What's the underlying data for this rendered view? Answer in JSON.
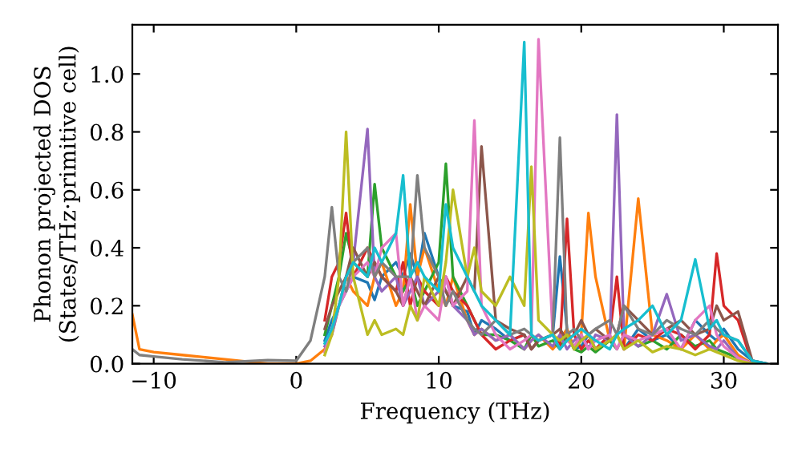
{
  "chart_data": {
    "type": "line",
    "xlabel": "Frequency (THz)",
    "ylabel": "Phonon projected DOS\n(States/THz·primitive cell)",
    "x": [
      -11.5,
      -11,
      -10,
      -8,
      -5,
      -2,
      0,
      1,
      2,
      2.5,
      3,
      3.5,
      4,
      5,
      5.5,
      6,
      7,
      7.5,
      8,
      8.5,
      9,
      10,
      10.5,
      11,
      12,
      12.5,
      13,
      14,
      15,
      16,
      16.5,
      17,
      18,
      18.5,
      19,
      19.5,
      20,
      20.5,
      21,
      22,
      22.5,
      23,
      24,
      25,
      26,
      27,
      28,
      29,
      29.5,
      30,
      31,
      32,
      33
    ],
    "xlim": [
      -11.5,
      33.8
    ],
    "xticks": [
      {
        "value": -10,
        "label": "−10"
      },
      0,
      10,
      20,
      30
    ],
    "ylim": [
      0,
      1.17
    ],
    "yticks": [
      {
        "value": 0,
        "label": "0.0"
      },
      {
        "value": 0.2,
        "label": "0.2"
      },
      {
        "value": 0.4,
        "label": "0.4"
      },
      {
        "value": 0.6,
        "label": "0.6"
      },
      {
        "value": 0.8,
        "label": "0.8"
      },
      {
        "value": 1.0,
        "label": "1.0"
      }
    ],
    "grid": false,
    "legend": false,
    "line_style": "solid",
    "series": [
      {
        "color": "#1f77b4",
        "values": [
          null,
          null,
          null,
          null,
          null,
          null,
          null,
          null,
          0.08,
          0.15,
          0.2,
          0.25,
          0.3,
          0.28,
          0.22,
          0.3,
          0.35,
          0.3,
          0.38,
          0.3,
          0.45,
          0.3,
          0.25,
          0.2,
          0.18,
          0.1,
          0.15,
          0.12,
          0.08,
          0.1,
          0.05,
          0.08,
          0.1,
          0.37,
          0.12,
          0.05,
          0.06,
          0.1,
          0.05,
          0.08,
          0.1,
          0.05,
          0.12,
          0.08,
          0.1,
          0.05,
          0.15,
          0.1,
          0.08,
          0.12,
          0.05,
          0.01,
          0.0
        ]
      },
      {
        "color": "#ff7f0e",
        "values": [
          0.17,
          0.05,
          0.04,
          0.03,
          0.015,
          0.0,
          0.0,
          0.01,
          0.05,
          0.1,
          0.2,
          0.3,
          0.25,
          0.2,
          0.3,
          0.35,
          0.2,
          0.25,
          0.55,
          0.3,
          0.4,
          0.25,
          0.2,
          0.3,
          0.15,
          0.1,
          0.12,
          0.08,
          0.1,
          0.05,
          0.08,
          0.1,
          0.05,
          0.08,
          0.12,
          0.05,
          0.1,
          0.52,
          0.3,
          0.08,
          0.1,
          0.05,
          0.57,
          0.1,
          0.08,
          0.05,
          0.1,
          0.05,
          0.08,
          0.1,
          0.03,
          0.0,
          0.0
        ]
      },
      {
        "color": "#2ca02c",
        "values": [
          null,
          null,
          null,
          null,
          null,
          null,
          null,
          null,
          0.1,
          0.2,
          0.3,
          0.45,
          0.35,
          0.3,
          0.62,
          0.4,
          0.3,
          0.25,
          0.3,
          0.2,
          0.25,
          0.35,
          0.69,
          0.3,
          0.2,
          0.15,
          0.1,
          0.1,
          0.08,
          0.05,
          0.1,
          0.06,
          0.08,
          0.05,
          0.1,
          0.05,
          0.04,
          0.06,
          0.04,
          0.08,
          0.05,
          0.1,
          0.06,
          0.08,
          0.05,
          0.1,
          0.06,
          0.08,
          0.05,
          0.04,
          0.02,
          0.0,
          0.0
        ]
      },
      {
        "color": "#d62728",
        "values": [
          null,
          null,
          null,
          null,
          null,
          null,
          null,
          null,
          0.15,
          0.3,
          0.35,
          0.52,
          0.3,
          0.4,
          0.35,
          0.3,
          0.25,
          0.35,
          0.2,
          0.3,
          0.25,
          0.2,
          0.3,
          0.25,
          0.2,
          0.15,
          0.1,
          0.05,
          0.08,
          0.1,
          0.05,
          0.08,
          0.1,
          0.06,
          0.5,
          0.1,
          0.05,
          0.08,
          0.05,
          0.1,
          0.3,
          0.05,
          0.1,
          0.08,
          0.12,
          0.1,
          0.05,
          0.1,
          0.38,
          0.2,
          0.15,
          0.0,
          0.0
        ]
      },
      {
        "color": "#9467bd",
        "values": [
          null,
          null,
          null,
          null,
          null,
          null,
          null,
          null,
          0.06,
          0.1,
          0.2,
          0.3,
          0.35,
          0.81,
          0.3,
          0.25,
          0.3,
          0.2,
          0.25,
          0.3,
          0.2,
          0.25,
          0.3,
          0.2,
          0.15,
          0.1,
          0.12,
          0.08,
          0.1,
          0.05,
          0.08,
          0.1,
          0.06,
          0.1,
          0.05,
          0.08,
          0.1,
          0.05,
          0.1,
          0.08,
          0.86,
          0.1,
          0.06,
          0.1,
          0.24,
          0.08,
          0.1,
          0.06,
          0.05,
          0.08,
          0.02,
          0.0,
          0.0
        ]
      },
      {
        "color": "#8c564b",
        "values": [
          null,
          null,
          null,
          null,
          null,
          null,
          null,
          null,
          0.12,
          0.2,
          0.25,
          0.3,
          0.4,
          0.3,
          0.35,
          0.3,
          0.25,
          0.2,
          0.3,
          0.25,
          0.2,
          0.3,
          0.25,
          0.2,
          0.3,
          0.25,
          0.75,
          0.15,
          0.12,
          0.1,
          0.05,
          0.08,
          0.1,
          0.12,
          0.08,
          0.1,
          0.15,
          0.1,
          0.12,
          0.08,
          0.1,
          0.2,
          0.15,
          0.1,
          0.12,
          0.15,
          0.1,
          0.12,
          0.2,
          0.15,
          0.18,
          0.01,
          0.0
        ]
      },
      {
        "color": "#e377c2",
        "values": [
          null,
          null,
          null,
          null,
          null,
          null,
          null,
          null,
          0.04,
          0.12,
          0.2,
          0.25,
          0.3,
          0.35,
          0.3,
          0.4,
          0.45,
          0.2,
          0.3,
          0.15,
          0.2,
          0.15,
          0.3,
          0.2,
          0.25,
          0.84,
          0.2,
          0.1,
          0.05,
          0.08,
          0.1,
          1.12,
          0.1,
          0.05,
          0.08,
          0.06,
          0.1,
          0.05,
          0.08,
          0.1,
          0.05,
          0.1,
          0.08,
          0.1,
          0.12,
          0.05,
          0.15,
          0.2,
          0.1,
          0.06,
          0.02,
          0.0,
          0.0
        ]
      },
      {
        "color": "#7f7f7f",
        "values": [
          0.05,
          0.03,
          0.025,
          0.015,
          0.005,
          0.012,
          0.01,
          0.08,
          0.3,
          0.54,
          0.3,
          0.25,
          0.35,
          0.4,
          0.3,
          0.35,
          0.3,
          0.3,
          0.3,
          0.65,
          0.4,
          0.3,
          0.2,
          0.25,
          0.15,
          0.12,
          0.1,
          0.15,
          0.1,
          0.12,
          0.1,
          0.08,
          0.1,
          0.78,
          0.1,
          0.12,
          0.08,
          0.1,
          0.12,
          0.15,
          0.1,
          0.2,
          0.12,
          0.1,
          0.15,
          0.12,
          0.1,
          0.15,
          0.12,
          0.1,
          0.08,
          0.01,
          0.0
        ]
      },
      {
        "color": "#bcbd22",
        "values": [
          null,
          null,
          null,
          null,
          null,
          null,
          null,
          null,
          0.03,
          0.1,
          0.3,
          0.8,
          0.3,
          0.1,
          0.15,
          0.1,
          0.12,
          0.1,
          0.2,
          0.15,
          0.3,
          0.2,
          0.35,
          0.6,
          0.3,
          0.4,
          0.25,
          0.2,
          0.3,
          0.2,
          0.68,
          0.15,
          0.1,
          0.08,
          0.1,
          0.05,
          0.08,
          0.1,
          0.05,
          0.08,
          0.1,
          0.05,
          0.08,
          0.04,
          0.06,
          0.05,
          0.03,
          0.05,
          0.04,
          0.03,
          0.01,
          0.0,
          0.0
        ]
      },
      {
        "color": "#17becf",
        "values": [
          null,
          null,
          null,
          null,
          null,
          null,
          null,
          null,
          0.07,
          0.12,
          0.2,
          0.3,
          0.35,
          0.3,
          0.4,
          0.35,
          0.45,
          0.65,
          0.3,
          0.35,
          0.3,
          0.25,
          0.55,
          0.4,
          0.3,
          0.25,
          0.2,
          0.15,
          0.1,
          1.11,
          0.1,
          0.08,
          0.1,
          0.05,
          0.08,
          0.1,
          0.12,
          0.1,
          0.08,
          0.05,
          0.1,
          0.12,
          0.15,
          0.2,
          0.1,
          0.15,
          0.36,
          0.12,
          0.15,
          0.1,
          0.08,
          0.01,
          0.0
        ]
      }
    ]
  }
}
